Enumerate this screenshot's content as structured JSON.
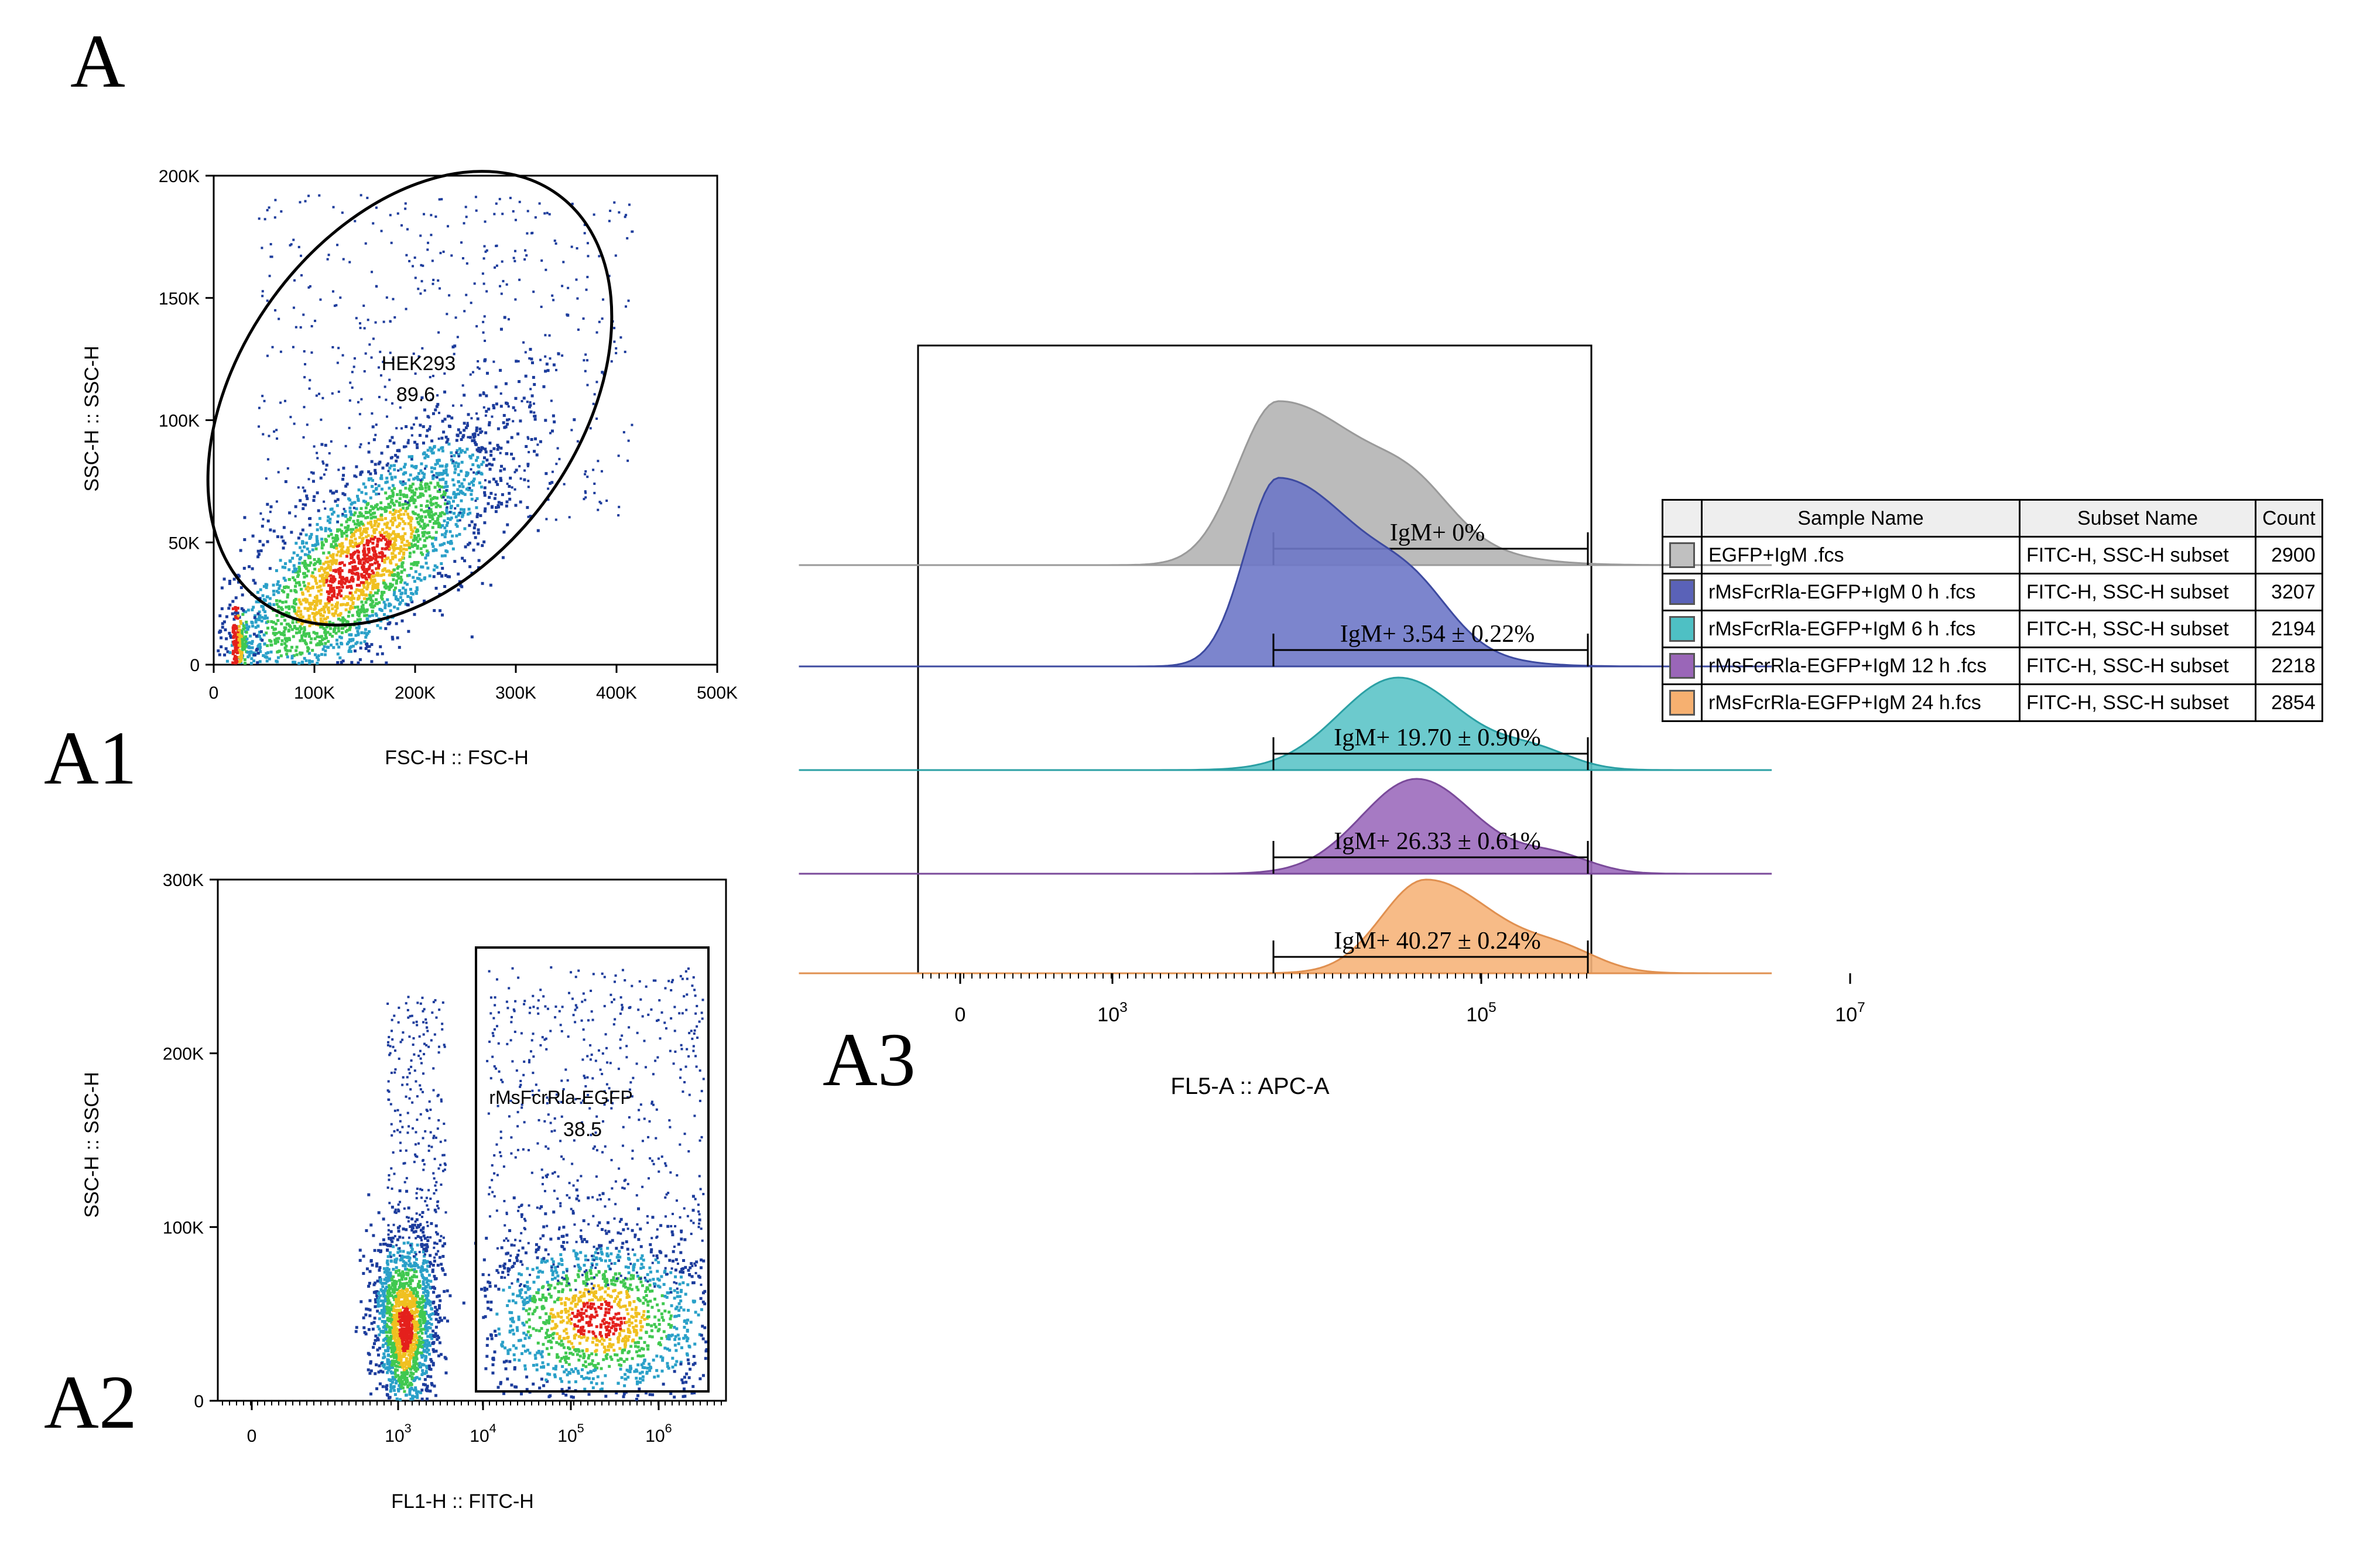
{
  "labels": {
    "main": "A",
    "a1": "A1",
    "a2": "A2",
    "a3": "A3"
  },
  "chart_data": [
    {
      "id": "A1",
      "type": "scatter",
      "xlabel": "FSC-H :: FSC-H",
      "ylabel": "SSC-H :: SSC-H",
      "xticks": [
        "0",
        "100K",
        "200K",
        "300K",
        "400K",
        "500K"
      ],
      "yticks": [
        "0",
        "50K",
        "100K",
        "150K",
        "200K"
      ],
      "xlim": [
        0,
        500000
      ],
      "ylim": [
        0,
        200000
      ],
      "gate": {
        "shape": "ellipse",
        "name": "HEK293",
        "value": "89.6"
      },
      "density_center": [
        140000,
        40000
      ]
    },
    {
      "id": "A2",
      "type": "scatter",
      "xlabel": "FL1-H :: FITC-H",
      "ylabel": "SSC-H :: SSC-H",
      "xticks": [
        "0",
        "10^3",
        "10^4",
        "10^5",
        "10^6"
      ],
      "yticks": [
        "0",
        "100K",
        "200K",
        "300K"
      ],
      "ylim": [
        0,
        300000
      ],
      "gate": {
        "shape": "rectangle",
        "name": "rMsFcrRla-EGFP",
        "value": "38.5"
      }
    },
    {
      "id": "A3",
      "type": "histogram",
      "xlabel": "FL5-A :: APC-A",
      "xticks": [
        "0",
        "10^3",
        "10^5",
        "10^7"
      ],
      "series": [
        {
          "name": "EGFP+IgM .fcs",
          "color": "#b4b4b4",
          "stroke": "#9a9a9a",
          "peak": 3.9,
          "annotation": "IgM+ 0%"
        },
        {
          "name": "rMsFcrRla-EGFP+IgM 0 h .fcs",
          "color": "#6e78c8",
          "stroke": "#3d4aa0",
          "peak": 3.9,
          "annotation": "IgM+ 3.54 ± 0.22%"
        },
        {
          "name": "rMsFcrRla-EGFP+IgM 6 h .fcs",
          "color": "#5cc4c8",
          "stroke": "#2ba0a4",
          "peak": 4.55,
          "annotation": "IgM+ 19.70 ± 0.90%"
        },
        {
          "name": "rMsFcrRla-EGFP+IgM 12 h .fcs",
          "color": "#9c6cbc",
          "stroke": "#7a4a9a",
          "peak": 4.65,
          "annotation": "IgM+ 26.33 ± 0.61%"
        },
        {
          "name": "rMsFcrRla-EGFP+IgM 24 h.fcs",
          "color": "#f6b47a",
          "stroke": "#e09050",
          "peak": 4.7,
          "annotation": "IgM+ 40.27 ± 0.24%"
        }
      ]
    }
  ],
  "legend_table": {
    "headers": [
      "Sample Name",
      "Subset Name",
      "Count"
    ],
    "rows": [
      {
        "color": "#c0c0c0",
        "sample": "EGFP+IgM .fcs",
        "subset": "FITC-H, SSC-H subset",
        "count": "2900"
      },
      {
        "color": "#5a62b8",
        "sample": "rMsFcrRla-EGFP+IgM 0 h .fcs",
        "subset": "FITC-H, SSC-H subset",
        "count": "3207"
      },
      {
        "color": "#4ec0c4",
        "sample": "rMsFcrRla-EGFP+IgM 6 h .fcs",
        "subset": "FITC-H, SSC-H subset",
        "count": "2194"
      },
      {
        "color": "#9a66b8",
        "sample": "rMsFcrRla-EGFP+IgM 12 h .fcs",
        "subset": "FITC-H, SSC-H subset",
        "count": "2218"
      },
      {
        "color": "#f6b070",
        "sample": "rMsFcrRla-EGFP+IgM 24 h.fcs",
        "subset": "FITC-H, SSC-H subset",
        "count": "2854"
      }
    ]
  }
}
